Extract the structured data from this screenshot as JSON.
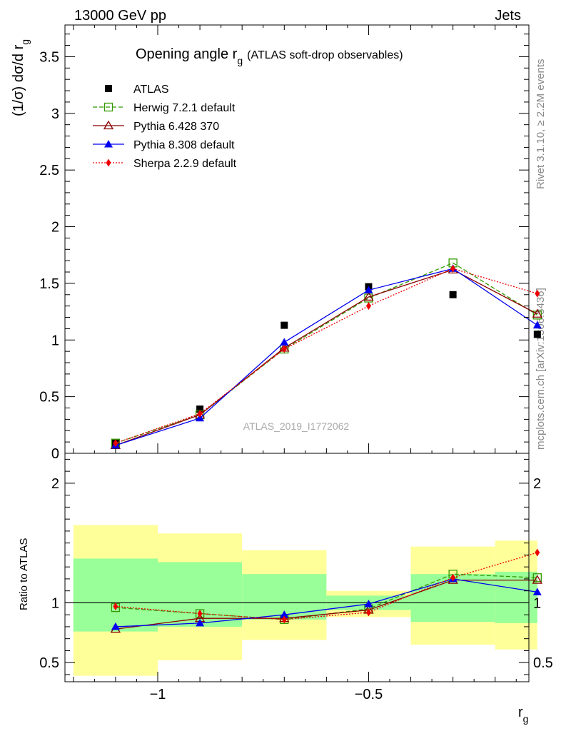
{
  "header": {
    "left_label": "13000 GeV pp",
    "right_label": "Jets"
  },
  "side": {
    "rivet": "Rivet 3.1.10, ≥ 2.2M events",
    "mcplots": "mcplots.cern.ch [arXiv:1306.3436]"
  },
  "chart_data": [
    {
      "type": "scatter",
      "title": "Opening angle r",
      "title_sub": "g",
      "title_suffix": "(ATLAS soft-drop observables)",
      "ylabel": "(1/σ) dσ/d r",
      "ylabel_sub": "g",
      "watermark": "ATLAS_2019_I1772062",
      "xlim": [
        -1.22,
        -0.12
      ],
      "ylim": [
        0,
        3.78
      ],
      "y_ticks": [
        "0",
        "0.5",
        "1",
        "1.5",
        "2",
        "2.5",
        "3",
        "3.5"
      ],
      "x": [
        -1.1,
        -0.9,
        -0.7,
        -0.5,
        -0.3,
        -0.1
      ],
      "legend_position": "top-left",
      "series": [
        {
          "name": "ATLAS",
          "color": "#000000",
          "marker": "square-filled",
          "line": "none",
          "values": [
            0.09,
            0.39,
            1.13,
            1.47,
            1.4,
            1.05
          ]
        },
        {
          "name": "Herwig 7.2.1 default",
          "color": "#339900",
          "marker": "square-open",
          "line": "dashed",
          "values": [
            0.09,
            0.34,
            0.92,
            1.37,
            1.68,
            1.22
          ]
        },
        {
          "name": "Pythia 6.428 370",
          "color": "#8b0000",
          "marker": "triangle-open",
          "line": "solid",
          "values": [
            0.07,
            0.34,
            0.93,
            1.38,
            1.62,
            1.23
          ]
        },
        {
          "name": "Pythia 8.308 default",
          "color": "#0000ee",
          "marker": "triangle-filled",
          "line": "solid",
          "values": [
            0.07,
            0.31,
            0.98,
            1.44,
            1.63,
            1.13
          ]
        },
        {
          "name": "Sherpa 2.2.9 default",
          "color": "#ee0000",
          "marker": "diamond-filled",
          "line": "dotted",
          "values": [
            0.09,
            0.35,
            0.92,
            1.3,
            1.63,
            1.41
          ]
        }
      ]
    },
    {
      "type": "scatter",
      "ylabel": "Ratio to ATLAS",
      "xlabel": "r",
      "xlabel_sub": "g",
      "xlim": [
        -1.22,
        -0.12
      ],
      "ylim": [
        0.34,
        2.25
      ],
      "y_ticks": [
        "0.5",
        "1",
        "2"
      ],
      "x_ticks": [
        "−1",
        "−0.5"
      ],
      "reference_line": 1,
      "bins": [
        -1.2,
        -1.0,
        -0.8,
        -0.6,
        -0.4,
        -0.2,
        -0.1
      ],
      "band_outer": {
        "color": "#ffff99",
        "lo": [
          0.39,
          0.52,
          0.69,
          0.88,
          0.65,
          0.61
        ],
        "hi": [
          1.65,
          1.58,
          1.44,
          1.1,
          1.47,
          1.52
        ]
      },
      "band_inner": {
        "color": "#99ff99",
        "lo": [
          0.76,
          0.8,
          0.86,
          0.94,
          0.84,
          0.83
        ],
        "hi": [
          1.37,
          1.34,
          1.24,
          1.06,
          1.24,
          1.26
        ]
      },
      "x": [
        -1.1,
        -0.9,
        -0.7,
        -0.5,
        -0.3,
        -0.1
      ],
      "series": [
        {
          "name": "Herwig 7.2.1 default",
          "color": "#339900",
          "marker": "square-open",
          "line": "dashed",
          "values": [
            0.96,
            0.91,
            0.86,
            0.95,
            1.24,
            1.21
          ]
        },
        {
          "name": "Pythia 6.428 370",
          "color": "#8b0000",
          "marker": "triangle-open",
          "line": "solid",
          "values": [
            0.78,
            0.87,
            0.87,
            0.94,
            1.19,
            1.19
          ]
        },
        {
          "name": "Pythia 8.308 default",
          "color": "#0000ee",
          "marker": "triangle-filled",
          "line": "solid",
          "values": [
            0.8,
            0.83,
            0.9,
            0.99,
            1.2,
            1.09
          ]
        },
        {
          "name": "Sherpa 2.2.9 default",
          "color": "#ee0000",
          "marker": "diamond-filled",
          "line": "dotted",
          "values": [
            0.97,
            0.91,
            0.86,
            0.92,
            1.21,
            1.42
          ]
        }
      ]
    }
  ]
}
